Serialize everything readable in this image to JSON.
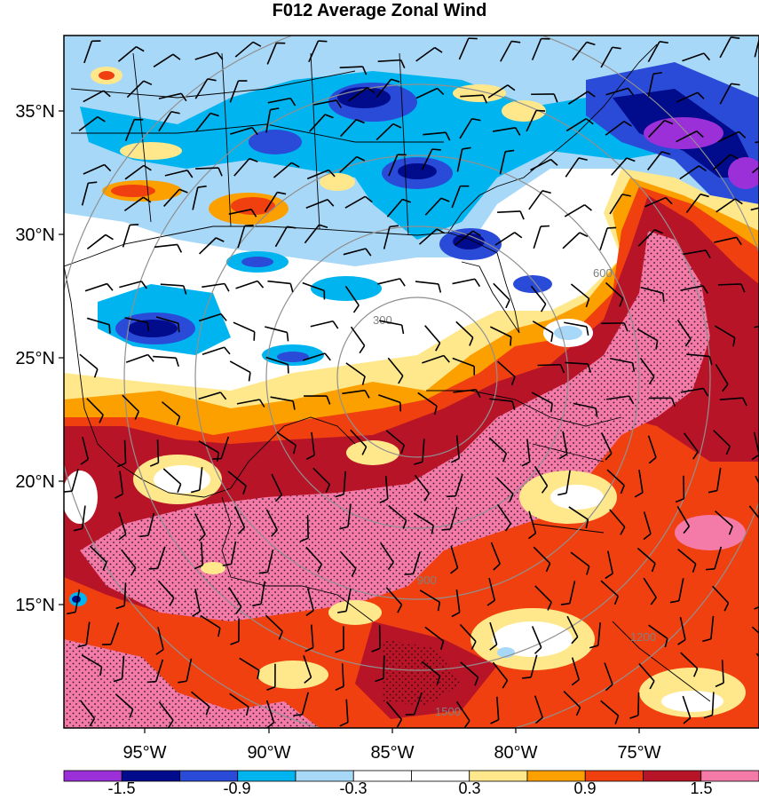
{
  "title": "F012 Average Zonal Wind",
  "lat_labels": [
    "35°N",
    "30°N",
    "25°N",
    "20°N",
    "15°N"
  ],
  "lon_labels": [
    "95°W",
    "90°W",
    "85°W",
    "80°W",
    "75°W"
  ],
  "colorbar": {
    "labels": [
      "-1.5",
      "-0.9",
      "-0.3",
      "0.3",
      "0.9",
      "1.5"
    ],
    "colors": [
      "#9b30d9",
      "#000c8c",
      "#2a4ad8",
      "#00b4f0",
      "#a8d8f8",
      "#ffffff",
      "#ffffff",
      "#ffe88c",
      "#fca000",
      "#f04010",
      "#b81428",
      "#f47aa8"
    ]
  },
  "range_rings": {
    "labels": [
      "300",
      "600",
      "900",
      "1200",
      "1500"
    ],
    "color": "#909090"
  },
  "colors": {
    "strong_negative": "#000c8c",
    "moderate_negative": "#2a4ad8",
    "weak_negative": "#00b4f0",
    "faint_negative": "#a8d8f8",
    "neutral": "#ffffff",
    "weak_positive": "#ffe88c",
    "moderate_positive": "#fca000",
    "strong_positive": "#f04010",
    "very_strong_positive": "#b81428",
    "extreme_positive": "#f47aa8"
  }
}
